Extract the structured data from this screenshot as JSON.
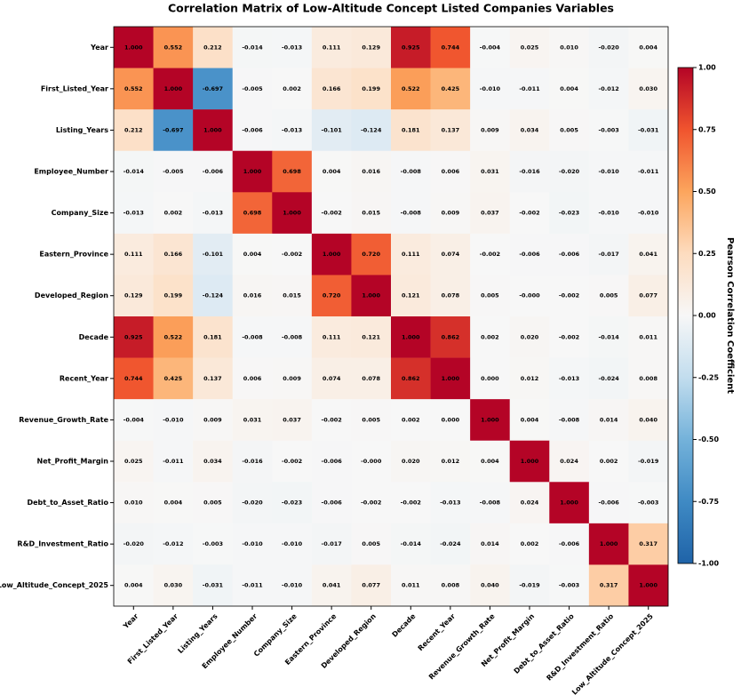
{
  "chart_data": {
    "type": "heatmap",
    "title": "Correlation Matrix of Low-Altitude Concept Listed Companies Variables",
    "categories": [
      "Year",
      "First_Listed_Year",
      "Listing_Years",
      "Employee_Number",
      "Company_Size",
      "Eastern_Province",
      "Developed_Region",
      "Decade",
      "Recent_Year",
      "Revenue_Growth_Rate",
      "Net_Profit_Margin",
      "Debt_to_Asset_Ratio",
      "R&D_Investment_Ratio",
      "Low_Altitude_Concept_2025"
    ],
    "values": [
      [
        1.0,
        0.552,
        0.212,
        -0.014,
        -0.013,
        0.111,
        0.129,
        0.925,
        0.744,
        -0.004,
        0.025,
        0.01,
        -0.02,
        0.004
      ],
      [
        0.552,
        1.0,
        -0.697,
        -0.005,
        0.002,
        0.166,
        0.199,
        0.522,
        0.425,
        -0.01,
        -0.011,
        0.004,
        -0.012,
        0.03
      ],
      [
        0.212,
        -0.697,
        1.0,
        -0.006,
        -0.013,
        -0.101,
        -0.124,
        0.181,
        0.137,
        0.009,
        0.034,
        0.005,
        -0.003,
        -0.031
      ],
      [
        -0.014,
        -0.005,
        -0.006,
        1.0,
        0.698,
        0.004,
        0.016,
        -0.008,
        0.006,
        0.031,
        -0.016,
        -0.02,
        -0.01,
        -0.011
      ],
      [
        -0.013,
        0.002,
        -0.013,
        0.698,
        1.0,
        -0.002,
        0.015,
        -0.008,
        0.009,
        0.037,
        -0.002,
        -0.023,
        -0.01,
        -0.01
      ],
      [
        0.111,
        0.166,
        -0.101,
        0.004,
        -0.002,
        1.0,
        0.72,
        0.111,
        0.074,
        -0.002,
        -0.006,
        -0.006,
        -0.017,
        0.041
      ],
      [
        0.129,
        0.199,
        -0.124,
        0.016,
        0.015,
        0.72,
        1.0,
        0.121,
        0.078,
        0.005,
        0,
        -0.002,
        0.005,
        0.077
      ],
      [
        0.925,
        0.522,
        0.181,
        -0.008,
        -0.008,
        0.111,
        0.121,
        1.0,
        0.862,
        0.002,
        0.02,
        -0.002,
        -0.014,
        0.011
      ],
      [
        0.744,
        0.425,
        0.137,
        0.006,
        0.009,
        0.074,
        0.078,
        0.862,
        1.0,
        0.0,
        0.012,
        -0.013,
        -0.024,
        0.008
      ],
      [
        -0.004,
        -0.01,
        0.009,
        0.031,
        0.037,
        -0.002,
        0.005,
        0.002,
        0.0,
        1.0,
        0.004,
        -0.008,
        0.014,
        0.04
      ],
      [
        0.025,
        -0.011,
        0.034,
        -0.016,
        -0.002,
        -0.006,
        0,
        0.02,
        0.012,
        0.004,
        1.0,
        0.024,
        0.002,
        -0.019
      ],
      [
        0.01,
        0.004,
        0.005,
        -0.02,
        -0.023,
        -0.006,
        -0.002,
        -0.002,
        -0.013,
        -0.008,
        0.024,
        1.0,
        -0.006,
        -0.003
      ],
      [
        -0.02,
        -0.012,
        -0.003,
        -0.01,
        -0.01,
        -0.017,
        0.005,
        -0.014,
        -0.024,
        0.014,
        0.002,
        -0.006,
        1.0,
        0.317
      ],
      [
        0.004,
        0.03,
        -0.031,
        -0.011,
        -0.01,
        0.041,
        0.077,
        0.011,
        0.008,
        0.04,
        -0.019,
        -0.003,
        0.317,
        1.0
      ]
    ],
    "value_labels": [
      [
        "1.000",
        "0.552",
        "0.212",
        "-0.014",
        "-0.013",
        "0.111",
        "0.129",
        "0.925",
        "0.744",
        "-0.004",
        "0.025",
        "0.010",
        "-0.020",
        "0.004"
      ],
      [
        "0.552",
        "1.000",
        "-0.697",
        "-0.005",
        "0.002",
        "0.166",
        "0.199",
        "0.522",
        "0.425",
        "-0.010",
        "-0.011",
        "0.004",
        "-0.012",
        "0.030"
      ],
      [
        "0.212",
        "-0.697",
        "1.000",
        "-0.006",
        "-0.013",
        "-0.101",
        "-0.124",
        "0.181",
        "0.137",
        "0.009",
        "0.034",
        "0.005",
        "-0.003",
        "-0.031"
      ],
      [
        "-0.014",
        "-0.005",
        "-0.006",
        "1.000",
        "0.698",
        "0.004",
        "0.016",
        "-0.008",
        "0.006",
        "0.031",
        "-0.016",
        "-0.020",
        "-0.010",
        "-0.011"
      ],
      [
        "-0.013",
        "0.002",
        "-0.013",
        "0.698",
        "1.000",
        "-0.002",
        "0.015",
        "-0.008",
        "0.009",
        "0.037",
        "-0.002",
        "-0.023",
        "-0.010",
        "-0.010"
      ],
      [
        "0.111",
        "0.166",
        "-0.101",
        "0.004",
        "-0.002",
        "1.000",
        "0.720",
        "0.111",
        "0.074",
        "-0.002",
        "-0.006",
        "-0.006",
        "-0.017",
        "0.041"
      ],
      [
        "0.129",
        "0.199",
        "-0.124",
        "0.016",
        "0.015",
        "0.720",
        "1.000",
        "0.121",
        "0.078",
        "0.005",
        "-0.000",
        "-0.002",
        "0.005",
        "0.077"
      ],
      [
        "0.925",
        "0.522",
        "0.181",
        "-0.008",
        "-0.008",
        "0.111",
        "0.121",
        "1.000",
        "0.862",
        "0.002",
        "0.020",
        "-0.002",
        "-0.014",
        "0.011"
      ],
      [
        "0.744",
        "0.425",
        "0.137",
        "0.006",
        "0.009",
        "0.074",
        "0.078",
        "0.862",
        "1.000",
        "0.000",
        "0.012",
        "-0.013",
        "-0.024",
        "0.008"
      ],
      [
        "-0.004",
        "-0.010",
        "0.009",
        "0.031",
        "0.037",
        "-0.002",
        "0.005",
        "0.002",
        "0.000",
        "1.000",
        "0.004",
        "-0.008",
        "0.014",
        "0.040"
      ],
      [
        "0.025",
        "-0.011",
        "0.034",
        "-0.016",
        "-0.002",
        "-0.006",
        "-0.000",
        "0.020",
        "0.012",
        "0.004",
        "1.000",
        "0.024",
        "0.002",
        "-0.019"
      ],
      [
        "0.010",
        "0.004",
        "0.005",
        "-0.020",
        "-0.023",
        "-0.006",
        "-0.002",
        "-0.002",
        "-0.013",
        "-0.008",
        "0.024",
        "1.000",
        "-0.006",
        "-0.003"
      ],
      [
        "-0.020",
        "-0.012",
        "-0.003",
        "-0.010",
        "-0.010",
        "-0.017",
        "0.005",
        "-0.014",
        "-0.024",
        "0.014",
        "0.002",
        "-0.006",
        "1.000",
        "0.317"
      ],
      [
        "0.004",
        "0.030",
        "-0.031",
        "-0.011",
        "-0.010",
        "0.041",
        "0.077",
        "0.011",
        "0.008",
        "0.040",
        "-0.019",
        "-0.003",
        "0.317",
        "1.000"
      ]
    ],
    "colorbar_label": "Pearson Correlation Coefficient",
    "clim": [
      -1,
      1
    ],
    "cticks": [
      {
        "value": 1,
        "label": "1.00"
      },
      {
        "value": 0.75,
        "label": "0.75"
      },
      {
        "value": 0.5,
        "label": "0.50"
      },
      {
        "value": 0.25,
        "label": "0.25"
      },
      {
        "value": 0,
        "label": "0.00"
      },
      {
        "value": -0.25,
        "label": "-0.25"
      },
      {
        "value": -0.5,
        "label": "-0.50"
      },
      {
        "value": -0.75,
        "label": "-0.75"
      },
      {
        "value": -1,
        "label": "-1.00"
      }
    ],
    "colormap": [
      "#1f63a8",
      "#3f8ac4",
      "#74b2da",
      "#c2ddee",
      "#f7f7f7",
      "#fddcbf",
      "#fca55d",
      "#f0542e",
      "#b40426"
    ]
  }
}
